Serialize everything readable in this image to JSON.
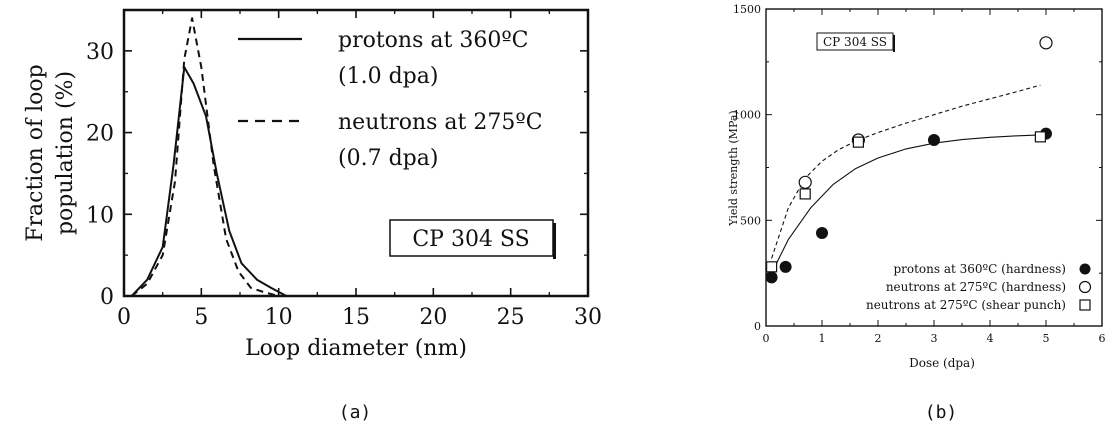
{
  "chart_data": [
    {
      "type": "line",
      "panel_label": "(a)",
      "xlabel": "Loop diameter (nm)",
      "ylabel": "Fraction of loop population (%)",
      "ylabel_lines": [
        "Fraction of loop",
        "population (%)"
      ],
      "xlim": [
        0,
        30
      ],
      "ylim": [
        0,
        35
      ],
      "xticks": [
        0,
        5,
        10,
        15,
        20,
        25,
        30
      ],
      "yticks": [
        0,
        10,
        20,
        30
      ],
      "annotation": "CP 304 SS",
      "legend_position": "top-right",
      "series": [
        {
          "name": "protons at 360ºC",
          "name2": "(1.0 dpa)",
          "style": "solid",
          "x": [
            0.5,
            1.5,
            2.5,
            3.2,
            3.9,
            4.5,
            5.3,
            6.0,
            6.8,
            7.6,
            8.6,
            9.5,
            10.5
          ],
          "y": [
            0,
            2,
            6,
            16,
            28,
            26,
            22,
            15,
            8,
            4,
            2,
            1,
            0
          ]
        },
        {
          "name": "neutrons at 275ºC",
          "name2": "(0.7 dpa)",
          "style": "dashed",
          "x": [
            0.5,
            1.5,
            2.5,
            3.3,
            3.9,
            4.4,
            5.0,
            5.8,
            6.6,
            7.4,
            8.2,
            9.0,
            10.0
          ],
          "y": [
            0,
            1.5,
            5,
            14,
            29,
            34,
            28,
            16,
            7,
            3,
            1,
            0.5,
            0
          ]
        }
      ]
    },
    {
      "type": "scatter",
      "panel_label": "(b)",
      "xlabel": "Dose (dpa)",
      "ylabel": "Yield strength (MPa)",
      "xlim": [
        0,
        6
      ],
      "ylim": [
        0,
        1500
      ],
      "xticks": [
        0,
        1,
        2,
        3,
        4,
        5,
        6
      ],
      "yticks": [
        0,
        500,
        1000,
        1500
      ],
      "annotation": "CP 304 SS",
      "legend_position": "bottom-right",
      "series": [
        {
          "name": "protons at 360ºC (hardness)",
          "marker": "filled-circle",
          "x": [
            0.1,
            0.35,
            1.0,
            3.0,
            5.0
          ],
          "y": [
            230,
            280,
            440,
            880,
            910
          ]
        },
        {
          "name": "neutrons at 275ºC (hardness)",
          "marker": "open-circle",
          "x": [
            0.7,
            1.65,
            5.0
          ],
          "y": [
            680,
            880,
            1340
          ]
        },
        {
          "name": "neutrons at 275ºC (shear punch)",
          "marker": "open-square",
          "x": [
            0.1,
            0.7,
            1.65,
            4.9
          ],
          "y": [
            280,
            625,
            870,
            895
          ]
        }
      ],
      "fits": [
        {
          "style": "solid",
          "x": [
            0.1,
            0.4,
            0.8,
            1.2,
            1.6,
            2.0,
            2.5,
            3.0,
            3.5,
            4.0,
            4.5,
            5.0
          ],
          "y": [
            250,
            410,
            560,
            670,
            745,
            795,
            838,
            865,
            882,
            893,
            900,
            905
          ]
        },
        {
          "style": "dashed",
          "x": [
            0.1,
            0.4,
            0.7,
            1.0,
            1.3,
            1.65,
            2.0,
            2.5,
            3.0,
            3.5,
            4.0,
            4.5,
            4.9
          ],
          "y": [
            320,
            560,
            700,
            780,
            835,
            880,
            915,
            960,
            1000,
            1040,
            1075,
            1110,
            1140
          ]
        }
      ]
    }
  ]
}
